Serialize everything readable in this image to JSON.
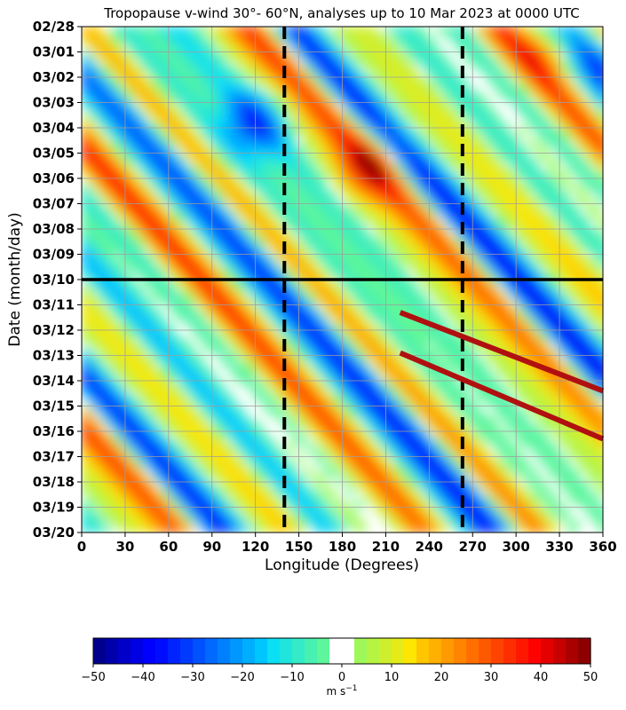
{
  "chart_data": {
    "type": "heatmap",
    "title": "Tropopause v-wind 30°- 60°N, analyses up to 10 Mar 2023 at 0000 UTC",
    "xlabel": "Longitude (Degrees)",
    "ylabel": "Date (month/day)",
    "x_ticks": [
      "0",
      "30",
      "60",
      "90",
      "120",
      "150",
      "180",
      "210",
      "240",
      "270",
      "300",
      "330",
      "360"
    ],
    "x_tick_values": [
      0,
      30,
      60,
      90,
      120,
      150,
      180,
      210,
      240,
      270,
      300,
      330,
      360
    ],
    "xlim": [
      0,
      360
    ],
    "y_ticks": [
      "02/28",
      "03/01",
      "03/02",
      "03/03",
      "03/04",
      "03/05",
      "03/06",
      "03/07",
      "03/08",
      "03/09",
      "03/10",
      "03/11",
      "03/12",
      "03/13",
      "03/14",
      "03/15",
      "03/16",
      "03/17",
      "03/18",
      "03/19",
      "03/20"
    ],
    "y_direction": "top-to-bottom (02/28 at top, 03/20 at bottom)",
    "grid": true,
    "colorbar": {
      "orientation": "horizontal",
      "placement": "bottom",
      "range": [
        -50,
        50
      ],
      "ticks": [
        "−50",
        "−40",
        "−30",
        "−20",
        "−10",
        "0",
        "10",
        "20",
        "30",
        "40",
        "50"
      ],
      "tick_values": [
        -50,
        -40,
        -30,
        -20,
        -10,
        0,
        10,
        20,
        30,
        40,
        50
      ],
      "label": "m s",
      "label_exponent": "−1",
      "blank_interval": [
        -2.5,
        2.5
      ],
      "colormap": "jet"
    },
    "annotations": {
      "analysis_line": {
        "date": "03/10",
        "color": "#000000",
        "style": "solid"
      },
      "vertical_dashed_lines_longitude": [
        140,
        263
      ],
      "trend_lines": [
        {
          "color": "#b01010",
          "from": {
            "lon": 220,
            "day": 11.3
          },
          "to": {
            "lon": 360,
            "day": 14.4
          }
        },
        {
          "color": "#b01010",
          "from": {
            "lon": 220,
            "day": 12.9
          },
          "to": {
            "lon": 360,
            "day": 16.3
          }
        }
      ]
    },
    "features": [
      {
        "lon": 120,
        "day": 3.8,
        "v": -42
      },
      {
        "lon": 200,
        "day": 5.5,
        "v": 36
      },
      {
        "lon": 325,
        "day": 0.6,
        "v": 35
      }
    ]
  }
}
